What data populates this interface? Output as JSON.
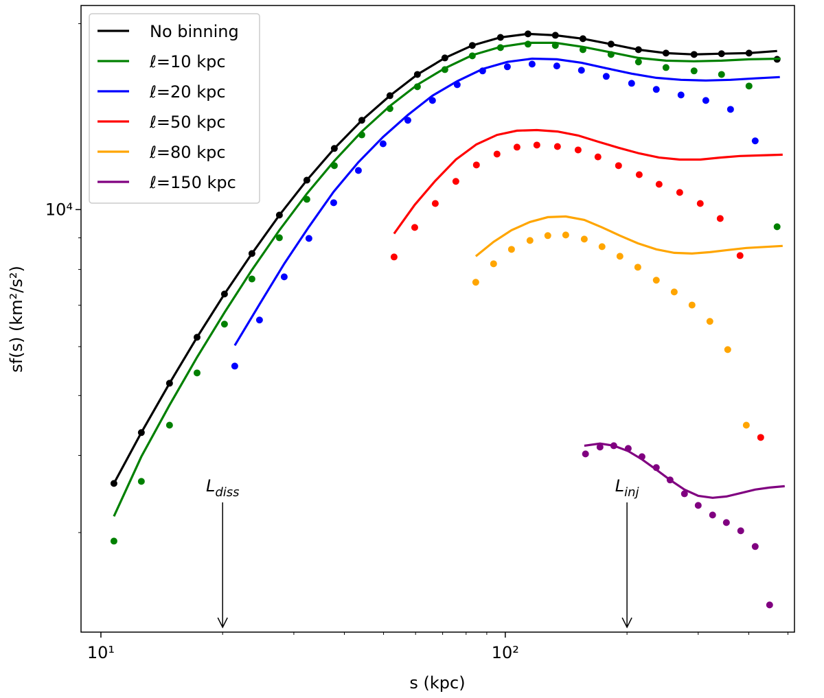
{
  "chart_data": {
    "type": "line",
    "xlabel": "s (kpc)",
    "ylabel": "sf(s) (km²/s²)",
    "xscale": "log",
    "yscale": "log",
    "xlim": [
      8.93,
      519
    ],
    "ylim": [
      2070,
      21400
    ],
    "xticks": [
      {
        "value": 10,
        "label": "10¹"
      },
      {
        "value": 100,
        "label": "10²"
      }
    ],
    "xminor": [
      20,
      30,
      40,
      50,
      60,
      70,
      80,
      90,
      200,
      300,
      400,
      500
    ],
    "yticks": [
      {
        "value": 10000,
        "label": "10⁴"
      }
    ],
    "yminor": [
      3000,
      4000,
      5000,
      6000,
      7000,
      8000,
      9000,
      20000
    ],
    "grid": false,
    "legend": "upper left",
    "series": [
      {
        "name": "No binning",
        "color": "#000000",
        "x": [
          10.77,
          12.59,
          14.78,
          17.29,
          20.21,
          23.63,
          27.63,
          32.31,
          37.78,
          44.18,
          51.85,
          60.63,
          70.89,
          82.89,
          97.3,
          113.8,
          133.0,
          155.6,
          182.6,
          213.5,
          249.7,
          293.0,
          342.6,
          400.6,
          470.1
        ],
        "values": [
          3603,
          4355,
          5234,
          6213,
          7300,
          8490,
          9797,
          11160,
          12560,
          13950,
          15290,
          16550,
          17600,
          18440,
          19000,
          19250,
          19150,
          18910,
          18530,
          18150,
          17920,
          17830,
          17880,
          17920,
          17510
        ],
        "line_x": [
          10.77,
          12.59,
          14.78,
          17.29,
          20.21,
          23.63,
          27.63,
          32.31,
          37.78,
          44.18,
          51.85,
          60.63,
          70.89,
          82.89,
          97.3,
          113.8,
          133.0,
          155.6,
          182.6,
          213.5,
          249.7,
          293.0,
          342.6,
          400.6,
          470.1
        ],
        "line_values": [
          3603,
          4355,
          5234,
          6213,
          7300,
          8490,
          9797,
          11160,
          12560,
          13950,
          15290,
          16550,
          17600,
          18440,
          19000,
          19250,
          19150,
          18910,
          18530,
          18150,
          17920,
          17830,
          17880,
          17920,
          18060
        ]
      },
      {
        "name": "ℓ=10 kpc",
        "color": "#008000",
        "x": [
          10.77,
          12.59,
          14.78,
          17.29,
          20.21,
          23.63,
          27.63,
          32.31,
          37.78,
          44.18,
          51.85,
          60.63,
          70.89,
          82.89,
          97.3,
          113.8,
          133.0,
          155.6,
          182.6,
          213.5,
          249.7,
          293.0,
          342.6,
          400.6,
          470.1
        ],
        "values": [
          2906,
          3631,
          4477,
          5440,
          6525,
          7721,
          9003,
          10390,
          11780,
          13210,
          14570,
          15810,
          16850,
          17740,
          18290,
          18530,
          18440,
          18150,
          17830,
          17340,
          16980,
          16770,
          16550,
          15850,
          9380
        ],
        "line_x": [
          10.77,
          12.59,
          14.78,
          17.29,
          20.21,
          23.63,
          27.63,
          32.31,
          37.78,
          44.18,
          51.85,
          60.63,
          70.89,
          82.89,
          97.3,
          113.8,
          133.0,
          155.6,
          182.6,
          213.5,
          249.7,
          293.0,
          342.6,
          400.6,
          479.5
        ],
        "line_values": [
          3187,
          3981,
          4825,
          5768,
          6813,
          7986,
          9261,
          10610,
          11990,
          13380,
          14720,
          15930,
          16940,
          17780,
          18340,
          18620,
          18620,
          18340,
          17970,
          17600,
          17420,
          17380,
          17420,
          17510,
          17550
        ]
      },
      {
        "name": "ℓ=20 kpc",
        "color": "#0000ff",
        "x": [
          21.43,
          24.67,
          28.4,
          32.69,
          37.64,
          43.33,
          49.87,
          57.42,
          66.07,
          76.06,
          87.9,
          101.2,
          116.5,
          134.1,
          154.3,
          177.7,
          205.3,
          236.3,
          272.0,
          313.3,
          360.6,
          415.0
        ],
        "values": [
          5580,
          6626,
          7782,
          8981,
          10260,
          11570,
          12780,
          13950,
          15020,
          15930,
          16770,
          17030,
          17200,
          17080,
          16810,
          16430,
          16010,
          15650,
          15330,
          15020,
          14530,
          12920
        ],
        "line_x": [
          21.43,
          24.67,
          28.4,
          32.69,
          37.64,
          43.33,
          49.87,
          57.42,
          66.07,
          76.06,
          87.9,
          101.2,
          116.5,
          134.1,
          154.3,
          177.7,
          205.3,
          236.3,
          272.0,
          313.3,
          360.6,
          415.0,
          477.6
        ],
        "line_values": [
          6026,
          7025,
          8171,
          9380,
          10690,
          11930,
          13110,
          14230,
          15290,
          16140,
          16890,
          17340,
          17550,
          17510,
          17290,
          16940,
          16600,
          16340,
          16220,
          16180,
          16220,
          16310,
          16390
        ]
      },
      {
        "name": "ℓ=50 kpc",
        "color": "#ff0000",
        "x": [
          53.09,
          59.71,
          67.13,
          75.47,
          84.84,
          95.4,
          106.9,
          119.7,
          134.6,
          151.4,
          169.5,
          190.6,
          214.4,
          240.1,
          270.0,
          303.5,
          340.0,
          380.7,
          428.2
        ],
        "values": [
          8381,
          9357,
          10230,
          11110,
          11810,
          12300,
          12620,
          12720,
          12650,
          12490,
          12170,
          11780,
          11390,
          10990,
          10660,
          10230,
          9673,
          8424,
          4277
        ],
        "line_x": [
          53.09,
          59.71,
          67.13,
          75.47,
          84.84,
          95.4,
          106.9,
          119.7,
          134.6,
          151.4,
          169.5,
          190.6,
          214.4,
          240.1,
          270.0,
          303.5,
          340.0,
          380.7,
          428.2,
          485.2
        ],
        "line_values": [
          9143,
          10180,
          11130,
          12050,
          12750,
          13210,
          13420,
          13450,
          13380,
          13180,
          12880,
          12590,
          12330,
          12140,
          12050,
          12050,
          12140,
          12210,
          12240,
          12270
        ]
      },
      {
        "name": "ℓ=80 kpc",
        "color": "#ffa500",
        "x": [
          84.53,
          93.56,
          103.6,
          115.1,
          127.4,
          141.1,
          156.8,
          173.5,
          192.1,
          212.7,
          236.3,
          261.7,
          289.6,
          320.6,
          354.9,
          394.5
        ],
        "values": [
          7627,
          8171,
          8622,
          8913,
          9075,
          9097,
          8958,
          8710,
          8403,
          8067,
          7686,
          7356,
          7006,
          6592,
          5934,
          4477
        ],
        "line_x": [
          84.53,
          93.56,
          103.6,
          115.1,
          127.4,
          141.1,
          156.8,
          173.5,
          192.1,
          212.7,
          236.3,
          261.7,
          289.6,
          320.6,
          354.9,
          394.5,
          485.2
        ],
        "line_values": [
          8403,
          8867,
          9261,
          9550,
          9722,
          9747,
          9623,
          9357,
          9075,
          8820,
          8622,
          8511,
          8490,
          8533,
          8600,
          8666,
          8733
        ]
      },
      {
        "name": "ℓ=150 kpc",
        "color": "#800080",
        "x": [
          157.9,
          171.5,
          185.5,
          201.4,
          217.8,
          236.3,
          255.6,
          277.4,
          300.0,
          325.6,
          352.2,
          382.2,
          415.0,
          450.5
        ],
        "values": [
          4022,
          4126,
          4147,
          4105,
          3981,
          3822,
          3650,
          3467,
          3320,
          3203,
          3114,
          3020,
          2848,
          2291
        ],
        "line_x": [
          156.8,
          171.5,
          185.5,
          201.4,
          217.8,
          236.3,
          255.6,
          277.4,
          300.0,
          325.6,
          352.2,
          382.2,
          415.0,
          450.5,
          490.9
        ],
        "line_values": [
          4147,
          4180,
          4147,
          4064,
          3941,
          3793,
          3650,
          3522,
          3441,
          3415,
          3432,
          3476,
          3522,
          3548,
          3566
        ]
      }
    ],
    "annotations": [
      {
        "text": "L",
        "sub": "diss",
        "x": 20
      },
      {
        "text": "L",
        "sub": "inj",
        "x": 200
      }
    ]
  }
}
